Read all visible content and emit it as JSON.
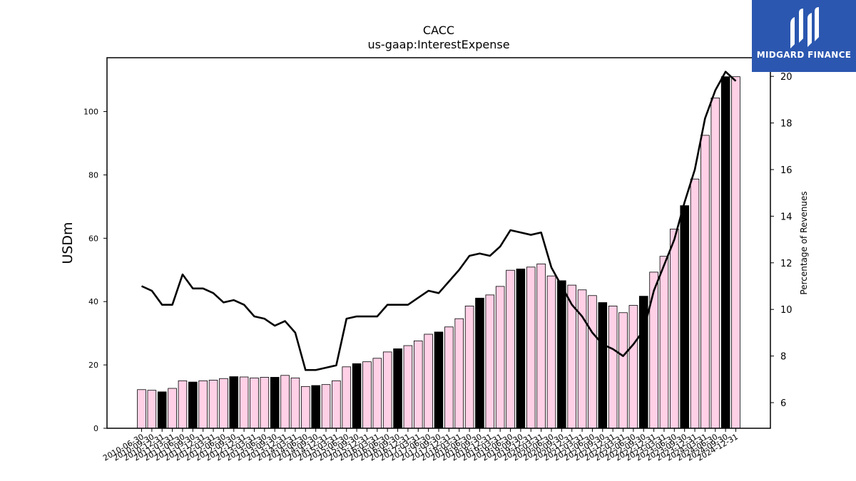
{
  "chart_data": {
    "type": "bar",
    "title": "CACC",
    "subtitle": "us-gaap:InterestExpense",
    "ylabel": "USDm",
    "y2label": "Percentage of Revenues",
    "ylim": [
      0,
      117
    ],
    "y2lim": [
      4.9,
      20.8
    ],
    "yticks": [
      0,
      20,
      40,
      60,
      80,
      100
    ],
    "y2ticks": [
      6,
      8,
      10,
      12,
      14,
      16,
      18,
      20
    ],
    "colors": {
      "quarter_bar": "#ffd0e6",
      "annual_bar": "#000000",
      "line": "#000000"
    },
    "categories": [
      "2010-06-30",
      "2010-09-30",
      "2010-12-31",
      "2011-03-31",
      "2011-06-30",
      "2011-09-30",
      "2011-12-31",
      "2012-03-31",
      "2012-06-30",
      "2012-09-30",
      "2012-12-31",
      "2013-03-31",
      "2013-06-30",
      "2013-09-30",
      "2013-12-31",
      "2014-03-31",
      "2014-06-30",
      "2014-09-30",
      "2014-12-31",
      "2015-03-31",
      "2015-06-30",
      "2015-09-30",
      "2015-12-31",
      "2016-03-31",
      "2016-06-30",
      "2016-09-30",
      "2016-12-31",
      "2017-03-31",
      "2017-06-30",
      "2017-09-30",
      "2017-12-31",
      "2018-03-31",
      "2018-06-30",
      "2018-09-30",
      "2018-12-31",
      "2019-03-31",
      "2019-06-30",
      "2019-09-30",
      "2019-12-31",
      "2020-03-31",
      "2020-06-30",
      "2020-09-30",
      "2020-12-31",
      "2021-03-31",
      "2021-06-30",
      "2021-09-30",
      "2021-12-31",
      "2022-03-31",
      "2022-06-30",
      "2022-09-30",
      "2022-12-31",
      "2023-03-31",
      "2023-06-30",
      "2023-09-30",
      "2023-12-31",
      "2024-03-31",
      "2024-06-30",
      "2024-09-30",
      "2024-12-31"
    ],
    "series": [
      {
        "values": [
          12.2,
          12.0,
          11.5,
          12.6,
          15.0,
          14.6,
          15.0,
          15.2,
          15.7,
          16.3,
          16.2,
          15.9,
          16.1,
          16.1,
          16.7,
          15.9,
          13.2,
          13.5,
          13.8,
          15.0,
          19.4,
          20.4,
          21.0,
          22.1,
          24.1,
          25.1,
          26.1,
          27.6,
          29.7,
          30.4,
          32.0,
          34.6,
          38.6,
          41.1,
          42.1,
          44.8,
          49.9,
          50.3,
          50.9,
          51.9,
          48.1,
          46.6,
          45.2,
          43.7,
          41.9,
          39.7,
          38.6,
          36.5,
          38.8,
          41.7,
          49.3,
          54.3,
          62.9,
          70.3,
          78.7,
          92.5,
          104.3,
          111.0,
          111.0
        ],
        "annual": [
          false,
          false,
          true,
          false,
          false,
          true,
          false,
          false,
          false,
          true,
          false,
          false,
          false,
          true,
          false,
          false,
          false,
          true,
          false,
          false,
          false,
          true,
          false,
          false,
          false,
          true,
          false,
          false,
          false,
          true,
          false,
          false,
          false,
          true,
          false,
          false,
          false,
          true,
          false,
          false,
          false,
          true,
          false,
          false,
          false,
          true,
          false,
          false,
          false,
          true,
          false,
          false,
          false,
          true,
          false,
          false,
          false,
          true,
          false
        ]
      },
      {
        "name": "Percentage of Revenues",
        "axis": "right",
        "values": [
          11.0,
          10.8,
          10.2,
          10.2,
          11.5,
          10.9,
          10.9,
          10.7,
          10.3,
          10.4,
          10.2,
          9.7,
          9.6,
          9.3,
          9.5,
          9.0,
          7.4,
          7.4,
          7.5,
          7.6,
          9.6,
          9.7,
          9.7,
          9.7,
          10.2,
          10.2,
          10.2,
          10.5,
          10.8,
          10.7,
          11.2,
          11.7,
          12.3,
          12.4,
          12.3,
          12.7,
          13.4,
          13.3,
          13.2,
          13.3,
          11.8,
          11.0,
          10.2,
          9.7,
          9.0,
          8.5,
          8.3,
          8.0,
          8.5,
          9.1,
          10.8,
          11.9,
          13.0,
          14.6,
          16.0,
          18.2,
          19.4,
          20.2,
          19.8
        ]
      }
    ]
  },
  "logo": {
    "text": "MIDGARD FINANCE"
  }
}
